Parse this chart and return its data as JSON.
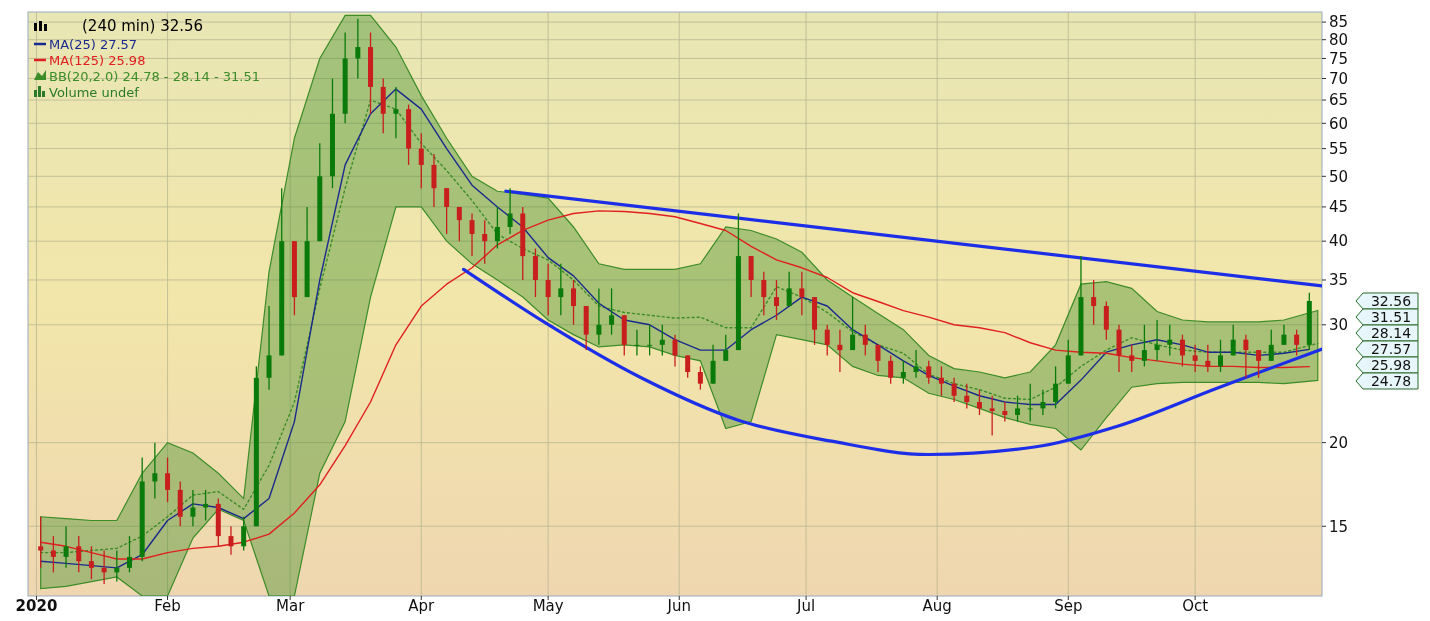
{
  "chart_data": {
    "type": "candlestick",
    "title": "(240 min) 32.56",
    "log": true,
    "grid": true,
    "legend": "top left",
    "x": [
      "2020-01-02",
      "2020-01-05",
      "2020-01-08",
      "2020-01-11",
      "2020-01-14",
      "2020-01-17",
      "2020-01-20",
      "2020-01-23",
      "2020-01-26",
      "2020-01-29",
      "2020-02-01",
      "2020-02-04",
      "2020-02-07",
      "2020-02-10",
      "2020-02-13",
      "2020-02-16",
      "2020-02-19",
      "2020-02-22",
      "2020-02-25",
      "2020-02-28",
      "2020-03-02",
      "2020-03-05",
      "2020-03-08",
      "2020-03-11",
      "2020-03-14",
      "2020-03-17",
      "2020-03-20",
      "2020-03-23",
      "2020-03-26",
      "2020-03-29",
      "2020-04-01",
      "2020-04-04",
      "2020-04-07",
      "2020-04-10",
      "2020-04-13",
      "2020-04-16",
      "2020-04-19",
      "2020-04-22",
      "2020-04-25",
      "2020-04-28",
      "2020-05-01",
      "2020-05-04",
      "2020-05-07",
      "2020-05-10",
      "2020-05-13",
      "2020-05-16",
      "2020-05-19",
      "2020-05-22",
      "2020-05-25",
      "2020-05-28",
      "2020-05-31",
      "2020-06-03",
      "2020-06-06",
      "2020-06-09",
      "2020-06-12",
      "2020-06-15",
      "2020-06-18",
      "2020-06-21",
      "2020-06-24",
      "2020-06-27",
      "2020-06-30",
      "2020-07-03",
      "2020-07-06",
      "2020-07-09",
      "2020-07-12",
      "2020-07-15",
      "2020-07-18",
      "2020-07-21",
      "2020-07-24",
      "2020-07-27",
      "2020-07-30",
      "2020-08-02",
      "2020-08-05",
      "2020-08-08",
      "2020-08-11",
      "2020-08-14",
      "2020-08-17",
      "2020-08-20",
      "2020-08-23",
      "2020-08-26",
      "2020-08-29",
      "2020-09-01",
      "2020-09-04",
      "2020-09-07",
      "2020-09-10",
      "2020-09-13",
      "2020-09-16",
      "2020-09-19",
      "2020-09-22",
      "2020-09-25",
      "2020-09-28",
      "2020-10-01",
      "2020-10-04",
      "2020-10-07",
      "2020-10-10",
      "2020-10-13",
      "2020-10-16",
      "2020-10-19",
      "2020-10-22",
      "2020-10-25",
      "2020-10-28"
    ],
    "ohlc": [
      [
        14,
        15.5,
        13,
        13.8
      ],
      [
        13.8,
        14.5,
        12.8,
        13.5
      ],
      [
        13.5,
        15,
        13,
        14
      ],
      [
        14,
        14.5,
        12.8,
        13.3
      ],
      [
        13.3,
        14,
        12.5,
        13
      ],
      [
        13,
        13.8,
        12.3,
        12.8
      ],
      [
        12.8,
        13.8,
        12.4,
        13
      ],
      [
        13,
        14.5,
        12.8,
        13.5
      ],
      [
        13.5,
        19,
        13.3,
        17.5
      ],
      [
        17.5,
        20,
        16.5,
        18
      ],
      [
        18,
        19,
        16.3,
        17
      ],
      [
        17,
        17.5,
        15,
        15.5
      ],
      [
        15.5,
        17,
        15,
        16
      ],
      [
        16,
        17,
        15.3,
        16.2
      ],
      [
        16.2,
        16.5,
        14,
        14.5
      ],
      [
        14.5,
        15,
        13.6,
        14
      ],
      [
        14,
        15.5,
        13.8,
        15
      ],
      [
        15,
        26,
        15,
        25
      ],
      [
        25,
        32,
        24,
        27
      ],
      [
        27,
        48,
        27,
        40
      ],
      [
        40,
        40,
        31,
        33
      ],
      [
        33,
        45,
        33,
        40
      ],
      [
        40,
        56,
        40,
        50
      ],
      [
        50,
        70,
        48,
        62
      ],
      [
        62,
        82,
        60,
        75
      ],
      [
        75,
        86,
        70,
        78
      ],
      [
        78,
        82,
        62,
        68
      ],
      [
        68,
        70,
        58,
        62
      ],
      [
        62,
        68,
        57,
        63
      ],
      [
        63,
        64,
        52,
        55
      ],
      [
        55,
        58,
        48,
        52
      ],
      [
        52,
        54,
        45,
        48
      ],
      [
        48,
        48,
        41,
        45
      ],
      [
        45,
        45,
        40,
        43
      ],
      [
        43,
        44,
        38,
        41
      ],
      [
        41,
        43,
        37,
        40
      ],
      [
        40,
        45,
        39,
        42
      ],
      [
        42,
        48,
        41,
        44
      ],
      [
        44,
        45,
        35,
        38
      ],
      [
        38,
        39,
        33,
        35
      ],
      [
        35,
        37,
        31,
        33
      ],
      [
        33,
        37,
        31,
        34
      ],
      [
        34,
        35,
        30,
        32
      ],
      [
        32,
        32,
        27.5,
        29
      ],
      [
        29,
        34,
        28,
        30
      ],
      [
        30,
        34,
        29,
        31
      ],
      [
        31,
        31,
        27,
        28
      ],
      [
        28,
        29.5,
        27,
        28
      ],
      [
        28,
        30,
        27,
        28
      ],
      [
        28,
        30,
        27,
        28.5
      ],
      [
        28.5,
        29,
        26,
        27
      ],
      [
        27,
        27,
        25,
        25.5
      ],
      [
        25.5,
        26,
        24,
        24.5
      ],
      [
        24.5,
        28,
        24.5,
        26.5
      ],
      [
        26.5,
        29,
        26.5,
        27.5
      ],
      [
        27.5,
        44,
        27.5,
        38
      ],
      [
        38,
        38,
        33,
        35
      ],
      [
        35,
        36,
        31,
        33
      ],
      [
        33,
        35,
        30.5,
        32
      ],
      [
        32,
        36,
        32,
        34
      ],
      [
        34,
        36,
        31,
        33
      ],
      [
        33,
        33,
        28,
        29.5
      ],
      [
        29.5,
        30,
        27,
        28
      ],
      [
        28,
        29.5,
        25.5,
        27.5
      ],
      [
        27.5,
        33,
        27.5,
        29
      ],
      [
        29,
        30,
        27,
        28
      ],
      [
        28,
        28,
        25.5,
        26.5
      ],
      [
        26.5,
        27,
        24.5,
        25
      ],
      [
        25,
        26.5,
        24.5,
        25.5
      ],
      [
        25.5,
        27.5,
        25,
        26
      ],
      [
        26,
        26.5,
        24.5,
        25
      ],
      [
        25,
        26,
        23.5,
        24.5
      ],
      [
        24.5,
        25,
        23,
        23.5
      ],
      [
        23.5,
        24.5,
        22.5,
        23
      ],
      [
        23,
        24,
        22,
        22.5
      ],
      [
        22.5,
        23.5,
        20.5,
        22.3
      ],
      [
        22.3,
        23,
        21.5,
        22
      ],
      [
        22,
        23.5,
        21.5,
        22.5
      ],
      [
        22.5,
        24.5,
        21.5,
        22.5
      ],
      [
        22.5,
        24,
        22,
        23
      ],
      [
        23,
        26,
        22.5,
        24.5
      ],
      [
        24.5,
        28.5,
        24.5,
        27
      ],
      [
        27,
        38,
        27,
        33
      ],
      [
        33,
        35,
        30,
        32
      ],
      [
        32,
        32.5,
        28.5,
        29.5
      ],
      [
        29.5,
        30,
        25.5,
        27
      ],
      [
        27,
        28,
        25.5,
        26.5
      ],
      [
        26.5,
        30,
        26,
        27.5
      ],
      [
        27.5,
        30.5,
        26.5,
        28
      ],
      [
        28,
        30,
        27,
        28.5
      ],
      [
        28.5,
        29,
        26,
        27
      ],
      [
        27,
        28,
        25.5,
        26.5
      ],
      [
        26.5,
        28,
        25.5,
        26
      ],
      [
        26,
        28.5,
        25.5,
        27
      ],
      [
        27,
        30,
        27,
        28.5
      ],
      [
        28.5,
        29,
        25,
        27.5
      ],
      [
        27.5,
        27.5,
        25,
        26.5
      ],
      [
        26.5,
        29.5,
        26.5,
        28
      ],
      [
        28,
        30,
        28,
        29
      ],
      [
        29,
        29.5,
        27,
        28
      ],
      [
        28,
        33.5,
        27.5,
        32.56
      ]
    ],
    "series": [
      {
        "name": "MA(25) 27.57",
        "type": "line",
        "color": "#1a2a8c",
        "x": [
          "2020-01-02",
          "2020-01-08",
          "2020-01-14",
          "2020-01-20",
          "2020-01-26",
          "2020-02-01",
          "2020-02-07",
          "2020-02-13",
          "2020-02-19",
          "2020-02-25",
          "2020-03-02",
          "2020-03-08",
          "2020-03-14",
          "2020-03-20",
          "2020-03-26",
          "2020-04-01",
          "2020-04-07",
          "2020-04-13",
          "2020-04-19",
          "2020-04-25",
          "2020-05-01",
          "2020-05-07",
          "2020-05-13",
          "2020-05-19",
          "2020-05-25",
          "2020-05-31",
          "2020-06-06",
          "2020-06-12",
          "2020-06-18",
          "2020-06-24",
          "2020-06-30",
          "2020-07-06",
          "2020-07-12",
          "2020-07-18",
          "2020-07-24",
          "2020-07-30",
          "2020-08-05",
          "2020-08-11",
          "2020-08-17",
          "2020-08-23",
          "2020-08-29",
          "2020-09-04",
          "2020-09-10",
          "2020-09-16",
          "2020-09-22",
          "2020-09-28",
          "2020-10-04",
          "2020-10-10",
          "2020-10-16",
          "2020-10-22",
          "2020-10-28"
        ],
        "values": [
          13.3,
          13.2,
          13.1,
          13.0,
          13.6,
          15.3,
          16.2,
          16.0,
          15.4,
          16.5,
          21.5,
          35,
          52,
          62,
          67.5,
          63,
          55,
          48.5,
          45,
          42,
          37.8,
          35.5,
          32.3,
          30.5,
          30,
          28.5,
          27.5,
          27.5,
          29.5,
          31,
          33,
          32,
          29.5,
          28,
          26.5,
          25.2,
          24.3,
          23.5,
          23,
          22.8,
          22.8,
          24.8,
          27.3,
          28,
          28.5,
          28,
          27.3,
          27.3,
          27,
          27.2,
          27.57
        ]
      },
      {
        "name": "MA(125) 25.98",
        "type": "line",
        "color": "#e02020",
        "x": [
          "2020-01-02",
          "2020-01-08",
          "2020-01-14",
          "2020-01-20",
          "2020-01-26",
          "2020-02-01",
          "2020-02-07",
          "2020-02-13",
          "2020-02-19",
          "2020-02-25",
          "2020-03-02",
          "2020-03-08",
          "2020-03-14",
          "2020-03-20",
          "2020-03-26",
          "2020-04-01",
          "2020-04-07",
          "2020-04-13",
          "2020-04-19",
          "2020-04-25",
          "2020-05-01",
          "2020-05-07",
          "2020-05-13",
          "2020-05-19",
          "2020-05-25",
          "2020-05-31",
          "2020-06-06",
          "2020-06-12",
          "2020-06-18",
          "2020-06-24",
          "2020-06-30",
          "2020-07-06",
          "2020-07-12",
          "2020-07-18",
          "2020-07-24",
          "2020-07-30",
          "2020-08-05",
          "2020-08-11",
          "2020-08-17",
          "2020-08-23",
          "2020-08-29",
          "2020-09-04",
          "2020-09-10",
          "2020-09-16",
          "2020-09-22",
          "2020-09-28",
          "2020-10-04",
          "2020-10-10",
          "2020-10-16",
          "2020-10-22",
          "2020-10-28"
        ],
        "values": [
          14.2,
          14.0,
          13.7,
          13.4,
          13.4,
          13.7,
          13.9,
          14.0,
          14.2,
          14.6,
          15.7,
          17.3,
          19.8,
          23,
          28,
          32,
          34.5,
          36.5,
          39.5,
          41.5,
          43,
          44,
          44.4,
          44.3,
          44,
          43.5,
          42.5,
          41.5,
          39.3,
          37.5,
          36.5,
          35.3,
          33.5,
          32.5,
          31.5,
          30.8,
          30,
          29.7,
          29.2,
          28.2,
          27.5,
          27.3,
          27.2,
          26.8,
          26.5,
          26.2,
          26,
          26,
          25.9,
          25.9,
          25.98
        ]
      },
      {
        "name": "BB(20,2.0) 24.78 - 28.14 - 31.51",
        "type": "line",
        "line_style": "dotted",
        "color": "#3c8c28",
        "x": [
          "2020-01-02",
          "2020-01-08",
          "2020-01-14",
          "2020-01-20",
          "2020-01-26",
          "2020-02-01",
          "2020-02-07",
          "2020-02-13",
          "2020-02-19",
          "2020-02-25",
          "2020-03-02",
          "2020-03-08",
          "2020-03-14",
          "2020-03-20",
          "2020-03-26",
          "2020-04-01",
          "2020-04-07",
          "2020-04-13",
          "2020-04-19",
          "2020-04-25",
          "2020-05-01",
          "2020-05-07",
          "2020-05-13",
          "2020-05-19",
          "2020-05-25",
          "2020-05-31",
          "2020-06-06",
          "2020-06-12",
          "2020-06-18",
          "2020-06-24",
          "2020-06-30",
          "2020-07-06",
          "2020-07-12",
          "2020-07-18",
          "2020-07-24",
          "2020-07-30",
          "2020-08-05",
          "2020-08-11",
          "2020-08-17",
          "2020-08-23",
          "2020-08-29",
          "2020-09-04",
          "2020-09-10",
          "2020-09-16",
          "2020-09-22",
          "2020-09-28",
          "2020-10-04",
          "2020-10-10",
          "2020-10-16",
          "2020-10-22",
          "2020-10-30"
        ],
        "values": [
          13.7,
          13.7,
          13.8,
          13.9,
          14.5,
          15.5,
          16.7,
          16.9,
          15.9,
          18.5,
          23,
          34,
          48,
          65,
          63,
          56,
          51,
          46,
          41,
          39,
          37.5,
          35,
          32,
          31.3,
          31,
          30.7,
          30.8,
          29.7,
          29.7,
          34.2,
          33,
          31.3,
          29.3,
          28,
          27.2,
          25.3,
          24.5,
          24,
          23.3,
          23.2,
          24.2,
          26,
          27.5,
          28.7,
          28,
          27.5,
          27.3,
          27.3,
          27.3,
          27.3,
          28.14
        ],
        "upper": [
          15.5,
          15.4,
          15.3,
          15.3,
          18,
          20,
          19.3,
          18,
          16.5,
          36,
          57,
          75,
          87,
          87,
          78,
          66,
          57,
          50,
          47.5,
          47,
          46.4,
          42,
          37,
          36.3,
          36.3,
          36.3,
          37,
          42,
          41.5,
          40.3,
          38.5,
          35,
          33,
          31.2,
          29.5,
          27,
          25.8,
          25.5,
          25,
          25.5,
          28,
          34.5,
          34.8,
          34,
          31.4,
          30.5,
          30.3,
          30.3,
          30.3,
          30.5,
          31.51
        ],
        "lower": [
          12.1,
          12.2,
          12.4,
          12.6,
          11.8,
          11.8,
          14.4,
          15.9,
          15.3,
          11.8,
          11.8,
          18,
          21.5,
          33,
          45,
          45,
          40,
          37,
          35,
          33,
          30.5,
          29,
          27.8,
          28,
          27.8,
          27,
          26.5,
          21,
          21.5,
          29,
          28.5,
          28,
          26,
          25.2,
          25,
          23.7,
          23.2,
          22.5,
          21.8,
          21.3,
          21,
          19.5,
          21.8,
          24.2,
          24.5,
          24.6,
          24.6,
          24.6,
          24.6,
          24.5,
          24.78
        ]
      },
      {
        "type": "line",
        "color": "#1c2ee8",
        "x": [
          "2020-04-21",
          "2020-10-31"
        ],
        "values": [
          47.5,
          34.3
        ]
      },
      {
        "type": "line",
        "color": "#1c2ee8",
        "x": [
          "2020-04-11",
          "2020-04-30",
          "2020-05-23",
          "2020-06-15",
          "2020-07-07",
          "2020-07-30",
          "2020-08-24",
          "2020-09-13",
          "2020-10-06",
          "2020-10-31"
        ],
        "values": [
          36.3,
          30.3,
          25,
          21.6,
          20.1,
          19.2,
          19.7,
          21.2,
          24.1,
          27.6
        ]
      }
    ],
    "annotations": [
      "Volume undef",
      "32.56",
      "31.51",
      "28.14",
      "27.57",
      "25.98",
      "24.78"
    ],
    "xlim": [
      "2019-12-30",
      "2020-10-31"
    ],
    "xticks": [
      {
        "value": "2020-01-01",
        "label": "2020"
      },
      {
        "value": "2020-02-01",
        "label": "Feb"
      },
      {
        "value": "2020-03-01",
        "label": "Mar"
      },
      {
        "value": "2020-04-01",
        "label": "Apr"
      },
      {
        "value": "2020-05-01",
        "label": "May"
      },
      {
        "value": "2020-06-01",
        "label": "Jun"
      },
      {
        "value": "2020-07-01",
        "label": "Jul"
      },
      {
        "value": "2020-08-01",
        "label": "Aug"
      },
      {
        "value": "2020-09-01",
        "label": "Sep"
      },
      {
        "value": "2020-10-01",
        "label": "Oct"
      }
    ],
    "ylim": [
      11.8,
      88
    ],
    "yticks": [
      15,
      20,
      30,
      35,
      40,
      45,
      50,
      55,
      60,
      65,
      70,
      75,
      80,
      85
    ]
  }
}
